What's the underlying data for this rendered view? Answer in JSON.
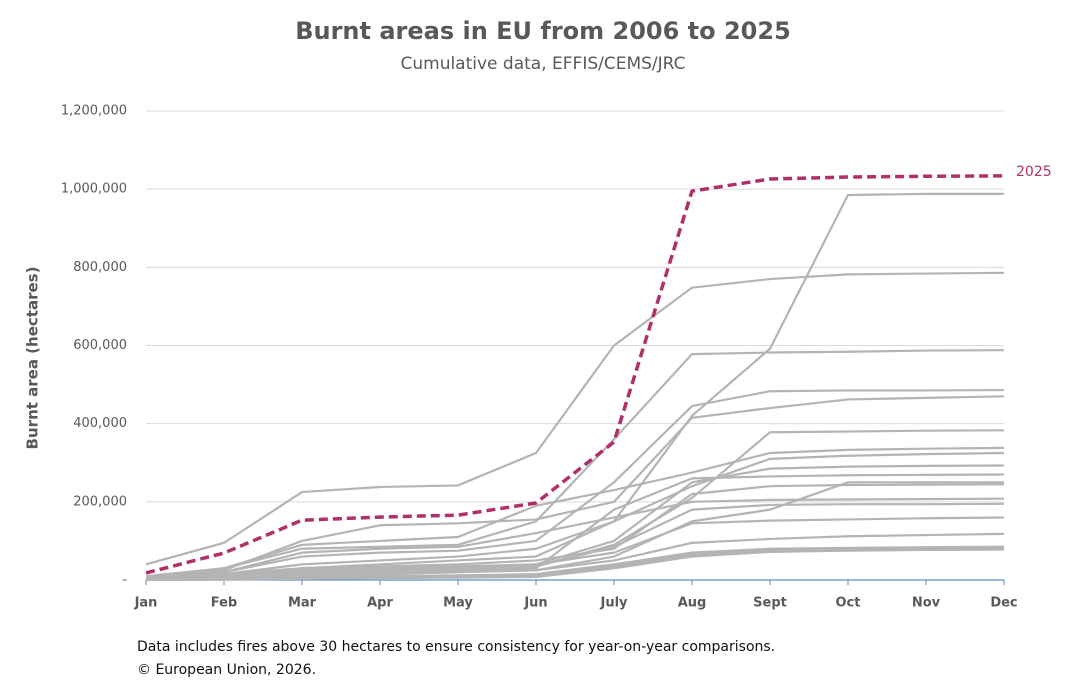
{
  "chart_data": {
    "type": "line",
    "title": "Burnt areas in EU from 2006 to 2025",
    "subtitle": "Cumulative data, EFFIS/CEMS/JRC",
    "y_label": "Burnt area (hectares)",
    "notes": [
      "Data includes fires above 30 hectares to ensure consistency for year-on-year comparisons.",
      "© European Union, 2026."
    ],
    "categories": [
      "Jan",
      "Feb",
      "Mar",
      "Apr",
      "May",
      "Jun",
      "July",
      "Aug",
      "Sept",
      "Oct",
      "Nov",
      "Dec"
    ],
    "ylim": [
      0,
      1200000
    ],
    "yticks": [
      {
        "value": 0,
        "label": "-"
      },
      {
        "value": 200000,
        "label": "200,000"
      },
      {
        "value": 400000,
        "label": "400,000"
      },
      {
        "value": 600000,
        "label": "600,000"
      },
      {
        "value": 800000,
        "label": "800,000"
      },
      {
        "value": 1000000,
        "label": "1,000,000"
      },
      {
        "value": 1200000,
        "label": "1,200,000"
      }
    ],
    "grid": true,
    "series": [
      {
        "color": "#b4b4b4",
        "values": [
          5000,
          15000,
          30000,
          40000,
          50000,
          60000,
          150000,
          420000,
          592000,
          985000,
          988000,
          988000
        ]
      },
      {
        "color": "#b4b4b4",
        "values": [
          40000,
          95000,
          225000,
          238000,
          242000,
          325000,
          600000,
          748000,
          770000,
          782000,
          784000,
          786000
        ]
      },
      {
        "color": "#b4b4b4",
        "values": [
          10000,
          30000,
          80000,
          85000,
          90000,
          150000,
          360000,
          578000,
          582000,
          584000,
          587000,
          588000
        ]
      },
      {
        "color": "#b4b4b4",
        "values": [
          5000,
          20000,
          60000,
          70000,
          75000,
          100000,
          250000,
          445000,
          483000,
          485000,
          485000,
          486000
        ]
      },
      {
        "color": "#b4b4b4",
        "values": [
          3000,
          25000,
          100000,
          140000,
          145000,
          155000,
          200000,
          415000,
          440000,
          462000,
          466000,
          470000
        ]
      },
      {
        "color": "#b4b4b4",
        "values": [
          2000,
          10000,
          20000,
          25000,
          30000,
          35000,
          90000,
          210000,
          378000,
          380000,
          382000,
          383000
        ]
      },
      {
        "color": "#b4b4b4",
        "values": [
          5000,
          30000,
          90000,
          100000,
          110000,
          190000,
          230000,
          275000,
          325000,
          333000,
          336000,
          338000
        ]
      },
      {
        "color": "#b4b4b4",
        "values": [
          3000,
          15000,
          40000,
          50000,
          60000,
          80000,
          150000,
          240000,
          310000,
          318000,
          322000,
          325000
        ]
      },
      {
        "color": "#b4b4b4",
        "values": [
          2000,
          10000,
          25000,
          30000,
          35000,
          40000,
          100000,
          250000,
          285000,
          290000,
          292000,
          293000
        ]
      },
      {
        "color": "#b4b4b4",
        "values": [
          1000,
          8000,
          15000,
          20000,
          25000,
          30000,
          180000,
          260000,
          265000,
          268000,
          269000,
          270000
        ]
      },
      {
        "color": "#b4b4b4",
        "values": [
          1000,
          5000,
          10000,
          15000,
          20000,
          25000,
          60000,
          150000,
          180000,
          250000,
          250000,
          250000
        ]
      },
      {
        "color": "#b4b4b4",
        "values": [
          2000,
          10000,
          30000,
          35000,
          40000,
          50000,
          80000,
          220000,
          240000,
          243000,
          244000,
          245000
        ]
      },
      {
        "color": "#b4b4b4",
        "values": [
          4000,
          20000,
          70000,
          80000,
          85000,
          120000,
          160000,
          200000,
          205000,
          206000,
          207000,
          208000
        ]
      },
      {
        "color": "#b4b4b4",
        "values": [
          1000,
          6000,
          15000,
          20000,
          25000,
          35000,
          85000,
          180000,
          192000,
          194000,
          194000,
          195000
        ]
      },
      {
        "color": "#b4b4b4",
        "values": [
          2000,
          8000,
          20000,
          25000,
          30000,
          40000,
          70000,
          145000,
          152000,
          155000,
          158000,
          160000
        ]
      },
      {
        "color": "#b4b4b4",
        "values": [
          1000,
          5000,
          12000,
          15000,
          20000,
          25000,
          50000,
          95000,
          105000,
          112000,
          115000,
          118000
        ]
      },
      {
        "color": "#b4b4b4",
        "values": [
          500,
          3000,
          8000,
          10000,
          12000,
          15000,
          40000,
          70000,
          80000,
          82000,
          84000,
          85000
        ]
      },
      {
        "color": "#b4b4b4",
        "values": [
          500,
          2000,
          5000,
          7000,
          9000,
          12000,
          35000,
          65000,
          76000,
          78000,
          79000,
          80000
        ]
      },
      {
        "color": "#b4b4b4",
        "values": [
          300,
          1000,
          3000,
          5000,
          6000,
          8000,
          30000,
          60000,
          72000,
          75000,
          77000,
          78000
        ]
      },
      {
        "name": "2025",
        "color": "#b0306a",
        "dashed": true,
        "values": [
          18000,
          69000,
          153000,
          161000,
          166000,
          197000,
          353000,
          995000,
          1026000,
          1031000,
          1033000,
          1034000
        ]
      }
    ]
  }
}
